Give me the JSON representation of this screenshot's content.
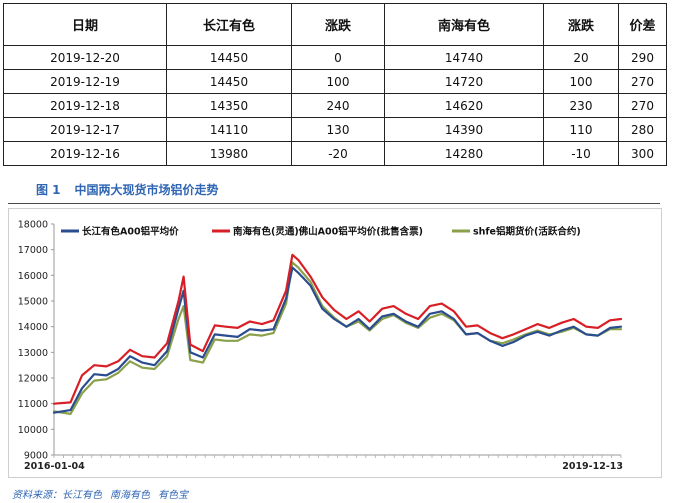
{
  "table": {
    "headers": [
      "日期",
      "长江有色",
      "涨跌",
      "南海有色",
      "涨跌",
      "价差"
    ],
    "rows": [
      [
        "2019-12-20",
        "14450",
        "0",
        "14740",
        "20",
        "290"
      ],
      [
        "2019-12-19",
        "14450",
        "100",
        "14720",
        "100",
        "270"
      ],
      [
        "2019-12-18",
        "14350",
        "240",
        "14620",
        "230",
        "270"
      ],
      [
        "2019-12-17",
        "14110",
        "130",
        "14390",
        "110",
        "280"
      ],
      [
        "2019-12-16",
        "13980",
        "-20",
        "14280",
        "-10",
        "300"
      ]
    ]
  },
  "figure": {
    "number": "图 1",
    "title": "中国两大现货市场铝价走势"
  },
  "source": {
    "prefix": "资料来源：",
    "items": [
      "长江有色",
      "南海有色",
      "有色宝"
    ]
  },
  "chart_data": {
    "type": "line",
    "x_start_label": "2016-01-04",
    "x_end_label": "2019-12-13",
    "ylim": [
      9000,
      18000
    ],
    "yticks": [
      9000,
      10000,
      11000,
      12000,
      13000,
      14000,
      15000,
      16000,
      17000,
      18000
    ],
    "x_dates": [
      "2016-01-04",
      "2016-02-15",
      "2016-03-15",
      "2016-04-15",
      "2016-05-16",
      "2016-06-15",
      "2016-07-15",
      "2016-08-15",
      "2016-09-15",
      "2016-10-17",
      "2016-11-15",
      "2016-11-28",
      "2016-12-15",
      "2017-01-16",
      "2017-02-15",
      "2017-03-15",
      "2017-04-14",
      "2017-05-15",
      "2017-06-15",
      "2017-07-14",
      "2017-08-15",
      "2017-08-31",
      "2017-09-15",
      "2017-10-16",
      "2017-11-15",
      "2017-12-15",
      "2018-01-15",
      "2018-02-15",
      "2018-03-15",
      "2018-04-16",
      "2018-05-15",
      "2018-06-15",
      "2018-07-16",
      "2018-08-15",
      "2018-09-14",
      "2018-10-15",
      "2018-11-15",
      "2018-12-14",
      "2019-01-15",
      "2019-02-15",
      "2019-03-15",
      "2019-04-15",
      "2019-05-15",
      "2019-06-14",
      "2019-07-15",
      "2019-08-15",
      "2019-09-16",
      "2019-10-15",
      "2019-11-15",
      "2019-12-13"
    ],
    "series": [
      {
        "name": "长江有色A00铝平均价",
        "color": "#2a4d8f",
        "values": [
          10650,
          10750,
          11600,
          12150,
          12100,
          12350,
          12850,
          12600,
          12500,
          13050,
          14700,
          15400,
          13000,
          12800,
          13700,
          13650,
          13600,
          13900,
          13850,
          13900,
          15100,
          16300,
          16100,
          15600,
          14700,
          14300,
          14000,
          14300,
          13900,
          14400,
          14500,
          14200,
          14000,
          14500,
          14600,
          14300,
          13700,
          13750,
          13450,
          13250,
          13400,
          13650,
          13800,
          13650,
          13850,
          14000,
          13700,
          13650,
          13950,
          14000
        ]
      },
      {
        "name": "南海有色(灵通)佛山A00铝平均价(批售含票)",
        "color": "#d81f26",
        "values": [
          11000,
          11050,
          12100,
          12500,
          12450,
          12650,
          13100,
          12850,
          12800,
          13350,
          15000,
          15950,
          13300,
          13050,
          14050,
          14000,
          13950,
          14200,
          14100,
          14250,
          15400,
          16800,
          16600,
          15950,
          15150,
          14650,
          14300,
          14600,
          14200,
          14700,
          14800,
          14500,
          14300,
          14800,
          14900,
          14600,
          14000,
          14050,
          13750,
          13550,
          13700,
          13900,
          14100,
          13950,
          14150,
          14300,
          14000,
          13950,
          14250,
          14300
        ]
      },
      {
        "name": "shfe铝期货价(活跃合约)",
        "color": "#8aa04a",
        "values": [
          10700,
          10600,
          11400,
          11900,
          11950,
          12200,
          12650,
          12400,
          12350,
          12850,
          14300,
          14800,
          12700,
          12600,
          13500,
          13450,
          13450,
          13700,
          13650,
          13750,
          14900,
          16500,
          16300,
          15750,
          14800,
          14350,
          14000,
          14200,
          13850,
          14300,
          14450,
          14150,
          13950,
          14350,
          14500,
          14250,
          13700,
          13750,
          13450,
          13350,
          13500,
          13700,
          13850,
          13700,
          13800,
          13950,
          13700,
          13650,
          13900,
          13900
        ]
      }
    ]
  }
}
